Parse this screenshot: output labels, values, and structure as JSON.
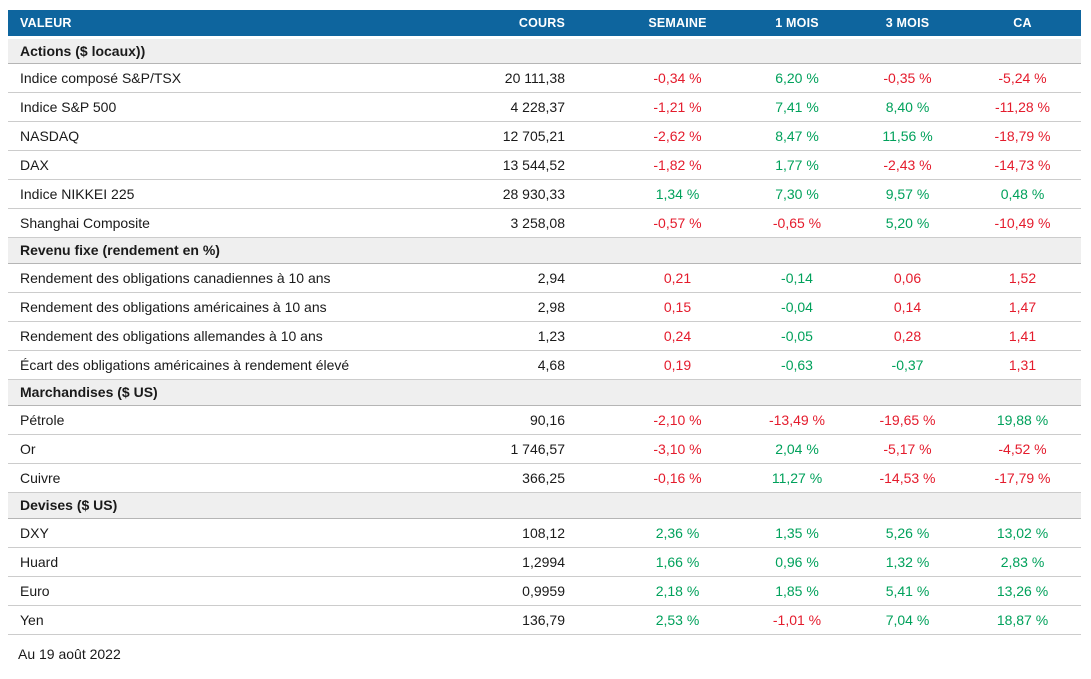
{
  "table": {
    "columns": [
      "VALEUR",
      "COURS",
      "SEMAINE",
      "1 MOIS",
      "3 MOIS",
      "CA"
    ],
    "sections": [
      {
        "title": "Actions ($ locaux))",
        "rows": [
          {
            "label": "Indice composé S&P/TSX",
            "cours": "20 111,38",
            "changes": [
              {
                "v": "-0,34 %",
                "t": "neg"
              },
              {
                "v": "6,20 %",
                "t": "pos"
              },
              {
                "v": "-0,35 %",
                "t": "neg"
              },
              {
                "v": "-5,24 %",
                "t": "neg"
              }
            ]
          },
          {
            "label": "Indice S&P 500",
            "cours": "4 228,37",
            "changes": [
              {
                "v": "-1,21 %",
                "t": "neg"
              },
              {
                "v": "7,41 %",
                "t": "pos"
              },
              {
                "v": "8,40 %",
                "t": "pos"
              },
              {
                "v": "-11,28 %",
                "t": "neg"
              }
            ]
          },
          {
            "label": "NASDAQ",
            "cours": "12 705,21",
            "changes": [
              {
                "v": "-2,62 %",
                "t": "neg"
              },
              {
                "v": "8,47 %",
                "t": "pos"
              },
              {
                "v": "11,56 %",
                "t": "pos"
              },
              {
                "v": "-18,79 %",
                "t": "neg"
              }
            ]
          },
          {
            "label": "DAX",
            "cours": "13 544,52",
            "changes": [
              {
                "v": "-1,82 %",
                "t": "neg"
              },
              {
                "v": "1,77 %",
                "t": "pos"
              },
              {
                "v": "-2,43 %",
                "t": "neg"
              },
              {
                "v": "-14,73 %",
                "t": "neg"
              }
            ]
          },
          {
            "label": "Indice NIKKEI 225",
            "cours": "28 930,33",
            "changes": [
              {
                "v": "1,34 %",
                "t": "pos"
              },
              {
                "v": "7,30 %",
                "t": "pos"
              },
              {
                "v": "9,57 %",
                "t": "pos"
              },
              {
                "v": "0,48 %",
                "t": "pos"
              }
            ]
          },
          {
            "label": "Shanghai Composite",
            "cours": "3 258,08",
            "changes": [
              {
                "v": "-0,57 %",
                "t": "neg"
              },
              {
                "v": "-0,65 %",
                "t": "neg"
              },
              {
                "v": "5,20 %",
                "t": "pos"
              },
              {
                "v": "-10,49 %",
                "t": "neg"
              }
            ]
          }
        ]
      },
      {
        "title": "Revenu fixe (rendement en %)",
        "rows": [
          {
            "label": "Rendement des obligations canadiennes à 10 ans",
            "cours": "2,94",
            "changes": [
              {
                "v": "0,21",
                "t": "neg"
              },
              {
                "v": "-0,14",
                "t": "pos"
              },
              {
                "v": "0,06",
                "t": "neg"
              },
              {
                "v": "1,52",
                "t": "neg"
              }
            ]
          },
          {
            "label": "Rendement des obligations américaines à 10 ans",
            "cours": "2,98",
            "changes": [
              {
                "v": "0,15",
                "t": "neg"
              },
              {
                "v": "-0,04",
                "t": "pos"
              },
              {
                "v": "0,14",
                "t": "neg"
              },
              {
                "v": "1,47",
                "t": "neg"
              }
            ]
          },
          {
            "label": "Rendement des obligations allemandes à 10 ans",
            "cours": "1,23",
            "changes": [
              {
                "v": "0,24",
                "t": "neg"
              },
              {
                "v": "-0,05",
                "t": "pos"
              },
              {
                "v": "0,28",
                "t": "neg"
              },
              {
                "v": "1,41",
                "t": "neg"
              }
            ]
          },
          {
            "label": "Écart des obligations américaines à rendement élevé",
            "cours": "4,68",
            "changes": [
              {
                "v": "0,19",
                "t": "neg"
              },
              {
                "v": "-0,63",
                "t": "pos"
              },
              {
                "v": "-0,37",
                "t": "pos"
              },
              {
                "v": "1,31",
                "t": "neg"
              }
            ]
          }
        ]
      },
      {
        "title": "Marchandises ($ US)",
        "rows": [
          {
            "label": "Pétrole",
            "cours": "90,16",
            "changes": [
              {
                "v": "-2,10 %",
                "t": "neg"
              },
              {
                "v": "-13,49 %",
                "t": "neg"
              },
              {
                "v": "-19,65 %",
                "t": "neg"
              },
              {
                "v": "19,88 %",
                "t": "pos"
              }
            ]
          },
          {
            "label": "Or",
            "cours": "1 746,57",
            "changes": [
              {
                "v": "-3,10 %",
                "t": "neg"
              },
              {
                "v": "2,04 %",
                "t": "pos"
              },
              {
                "v": "-5,17 %",
                "t": "neg"
              },
              {
                "v": "-4,52 %",
                "t": "neg"
              }
            ]
          },
          {
            "label": "Cuivre",
            "cours": "366,25",
            "changes": [
              {
                "v": "-0,16 %",
                "t": "neg"
              },
              {
                "v": "11,27 %",
                "t": "pos"
              },
              {
                "v": "-14,53 %",
                "t": "neg"
              },
              {
                "v": "-17,79 %",
                "t": "neg"
              }
            ]
          }
        ]
      },
      {
        "title": "Devises ($ US)",
        "rows": [
          {
            "label": "DXY",
            "cours": "108,12",
            "changes": [
              {
                "v": "2,36 %",
                "t": "pos"
              },
              {
                "v": "1,35 %",
                "t": "pos"
              },
              {
                "v": "5,26 %",
                "t": "pos"
              },
              {
                "v": "13,02 %",
                "t": "pos"
              }
            ]
          },
          {
            "label": "Huard",
            "cours": "1,2994",
            "changes": [
              {
                "v": "1,66 %",
                "t": "pos"
              },
              {
                "v": "0,96 %",
                "t": "pos"
              },
              {
                "v": "1,32 %",
                "t": "pos"
              },
              {
                "v": "2,83 %",
                "t": "pos"
              }
            ]
          },
          {
            "label": "Euro",
            "cours": "0,9959",
            "changes": [
              {
                "v": "2,18 %",
                "t": "pos"
              },
              {
                "v": "1,85 %",
                "t": "pos"
              },
              {
                "v": "5,41 %",
                "t": "pos"
              },
              {
                "v": "13,26 %",
                "t": "pos"
              }
            ]
          },
          {
            "label": "Yen",
            "cours": "136,79",
            "changes": [
              {
                "v": "2,53 %",
                "t": "pos"
              },
              {
                "v": "-1,01 %",
                "t": "neg"
              },
              {
                "v": "7,04 %",
                "t": "pos"
              },
              {
                "v": "18,87 %",
                "t": "pos"
              }
            ]
          }
        ]
      }
    ]
  },
  "footer": {
    "as_of": "Au 19 août 2022"
  },
  "colors": {
    "header_bg": "#0E659E",
    "header_text": "#FFFFFF",
    "positive": "#00A15B",
    "negative": "#E41B2C",
    "section_bg": "#EFEFEF",
    "row_border": "#CCCCCC",
    "section_border": "#B5B5B5",
    "text": "#1A1A1A"
  }
}
